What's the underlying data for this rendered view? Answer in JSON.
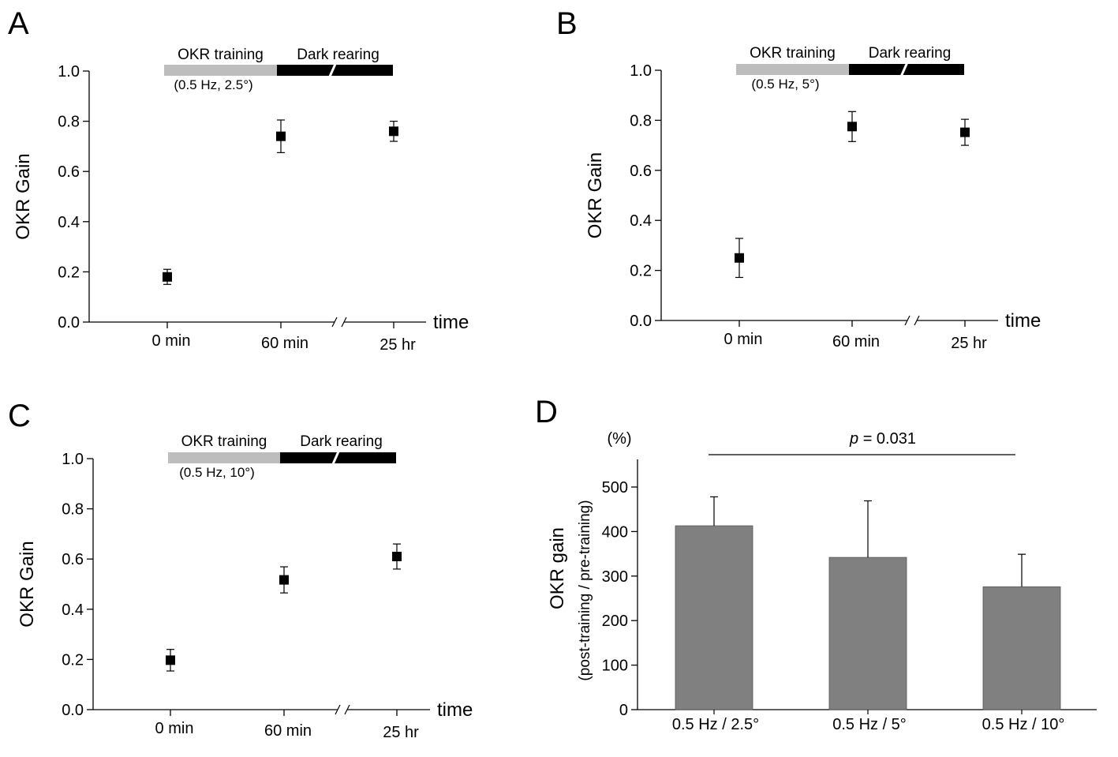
{
  "chart_data": [
    {
      "panel": "A",
      "type": "scatter",
      "categories": [
        "0 min",
        "60 min",
        "25 hr"
      ],
      "values": [
        0.18,
        0.74,
        0.76
      ],
      "error": [
        0.03,
        0.065,
        0.04
      ],
      "ylabel": "OKR Gain",
      "xlabel": "time",
      "ylim": [
        0.0,
        1.0
      ],
      "yticks": [
        "0.0",
        "0.2",
        "0.4",
        "0.6",
        "0.8",
        "1.0"
      ],
      "axis_break": "//",
      "protocol": {
        "training_label": "OKR training",
        "training_params": "(0.5 Hz, 2.5°)",
        "dark_label": "Dark rearing",
        "training_color": "#bdbdbd",
        "dark_color": "#000000"
      },
      "marker_color": "#000000"
    },
    {
      "panel": "B",
      "type": "scatter",
      "categories": [
        "0 min",
        "60 min",
        "25 hr"
      ],
      "values": [
        0.25,
        0.775,
        0.752
      ],
      "error": [
        0.078,
        0.06,
        0.052
      ],
      "ylabel": "OKR Gain",
      "xlabel": "time",
      "ylim": [
        0.0,
        1.0
      ],
      "yticks": [
        "0.0",
        "0.2",
        "0.4",
        "0.6",
        "0.8",
        "1.0"
      ],
      "axis_break": "//",
      "protocol": {
        "training_label": "OKR training",
        "training_params": "(0.5 Hz, 5°)",
        "dark_label": "Dark rearing",
        "training_color": "#bdbdbd",
        "dark_color": "#000000"
      },
      "marker_color": "#000000"
    },
    {
      "panel": "C",
      "type": "scatter",
      "categories": [
        "0 min",
        "60 min",
        "25 hr"
      ],
      "values": [
        0.197,
        0.517,
        0.61
      ],
      "error": [
        0.043,
        0.052,
        0.05
      ],
      "ylabel": "OKR Gain",
      "xlabel": "time",
      "ylim": [
        0.0,
        1.0
      ],
      "yticks": [
        "0.0",
        "0.2",
        "0.4",
        "0.6",
        "0.8",
        "1.0"
      ],
      "axis_break": "//",
      "protocol": {
        "training_label": "OKR training",
        "training_params": "(0.5 Hz, 10°)",
        "dark_label": "Dark rearing",
        "training_color": "#bdbdbd",
        "dark_color": "#000000"
      },
      "marker_color": "#000000"
    },
    {
      "panel": "D",
      "type": "bar",
      "categories": [
        "0.5 Hz / 2.5°",
        "0.5 Hz / 5°",
        "0.5 Hz / 10°"
      ],
      "values": [
        413,
        342,
        276
      ],
      "error": [
        65,
        127,
        73
      ],
      "ylabel": "OKR gain",
      "ylabel_sub": "(post-training / pre-training)",
      "unit": "(%)",
      "ylim": [
        0,
        560
      ],
      "yticks": [
        "0",
        "100",
        "200",
        "300",
        "400",
        "500"
      ],
      "significance": {
        "p_symbol": "p",
        "p_value": " = 0.031"
      },
      "bar_color": "#808080"
    }
  ]
}
